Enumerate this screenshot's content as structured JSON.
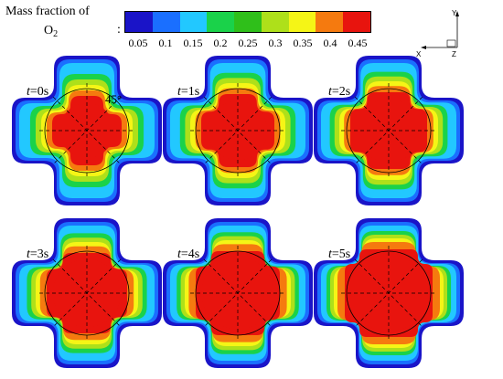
{
  "legend": {
    "title_line1": "Mass fraction of",
    "title_line2": "O",
    "title_subscript": "2",
    "colon": ":",
    "colors": [
      "#1a14c8",
      "#1a6fff",
      "#22c8ff",
      "#1ad24a",
      "#2fbf1a",
      "#aee01a",
      "#f5f516",
      "#f57a0f",
      "#e8140e"
    ],
    "ticks": [
      "0.05",
      "0.1",
      "0.15",
      "0.2",
      "0.25",
      "0.3",
      "0.35",
      "0.4",
      "0.45"
    ]
  },
  "axes_triad": {
    "y": "Y",
    "x": "X",
    "z": "Z"
  },
  "panels": [
    {
      "t_var": "t",
      "t_value": "=0s",
      "angle": "45°",
      "spread": 0.0
    },
    {
      "t_var": "t",
      "t_value": "=1s",
      "angle": "",
      "spread": 0.2
    },
    {
      "t_var": "t",
      "t_value": "=2s",
      "angle": "",
      "spread": 0.4
    },
    {
      "t_var": "t",
      "t_value": "=3s",
      "angle": "",
      "spread": 0.6
    },
    {
      "t_var": "t",
      "t_value": "=4s",
      "angle": "",
      "spread": 0.8
    },
    {
      "t_var": "t",
      "t_value": "=5s",
      "angle": "",
      "spread": 1.0
    }
  ]
}
